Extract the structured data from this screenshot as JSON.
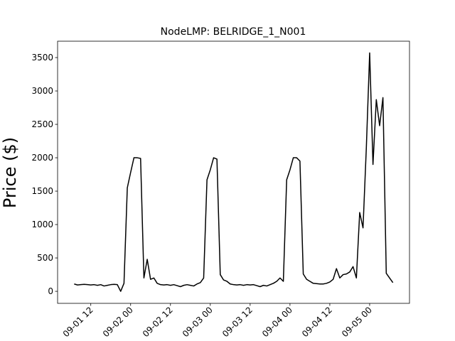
{
  "chart_data": {
    "type": "line",
    "title": "NodeLMP: BELRIDGE_1_N001",
    "y_label": "Price ($)",
    "color": "#000000",
    "x": [
      "09-01 07",
      "09-01 08",
      "09-01 09",
      "09-01 10",
      "09-01 11",
      "09-01 12",
      "09-01 13",
      "09-01 14",
      "09-01 15",
      "09-01 16",
      "09-01 17",
      "09-01 18",
      "09-01 19",
      "09-01 20",
      "09-01 21",
      "09-01 22",
      "09-01 23",
      "09-02 00",
      "09-02 01",
      "09-02 02",
      "09-02 03",
      "09-02 04",
      "09-02 05",
      "09-02 06",
      "09-02 07",
      "09-02 08",
      "09-02 09",
      "09-02 10",
      "09-02 11",
      "09-02 12",
      "09-02 13",
      "09-02 14",
      "09-02 15",
      "09-02 16",
      "09-02 17",
      "09-02 18",
      "09-02 19",
      "09-02 20",
      "09-02 21",
      "09-02 22",
      "09-02 23",
      "09-03 00",
      "09-03 01",
      "09-03 02",
      "09-03 03",
      "09-03 04",
      "09-03 05",
      "09-03 06",
      "09-03 07",
      "09-03 08",
      "09-03 09",
      "09-03 10",
      "09-03 11",
      "09-03 12",
      "09-03 13",
      "09-03 14",
      "09-03 15",
      "09-03 16",
      "09-03 17",
      "09-03 18",
      "09-03 19",
      "09-03 20",
      "09-03 21",
      "09-03 22",
      "09-03 23",
      "09-04 00",
      "09-04 01",
      "09-04 02",
      "09-04 03",
      "09-04 04",
      "09-04 05",
      "09-04 06",
      "09-04 07",
      "09-04 08",
      "09-04 09",
      "09-04 10",
      "09-04 11",
      "09-04 12",
      "09-04 13",
      "09-04 14",
      "09-04 15",
      "09-04 16",
      "09-04 17",
      "09-04 18",
      "09-04 19",
      "09-04 20",
      "09-04 21",
      "09-04 22",
      "09-04 23",
      "09-05 00",
      "09-05 01",
      "09-05 02",
      "09-05 03",
      "09-05 04",
      "09-05 05",
      "09-05 06",
      "09-05 07"
    ],
    "values": [
      110,
      95,
      100,
      105,
      100,
      95,
      100,
      90,
      100,
      80,
      90,
      100,
      105,
      100,
      0,
      120,
      1550,
      1780,
      2000,
      2000,
      1990,
      200,
      480,
      180,
      200,
      120,
      100,
      95,
      100,
      90,
      100,
      85,
      70,
      90,
      100,
      90,
      80,
      110,
      130,
      200,
      1670,
      1820,
      2000,
      1980,
      250,
      170,
      150,
      110,
      100,
      95,
      100,
      90,
      100,
      95,
      100,
      85,
      70,
      90,
      80,
      100,
      120,
      150,
      200,
      150,
      1670,
      1820,
      2000,
      2000,
      1950,
      260,
      180,
      150,
      120,
      115,
      110,
      110,
      120,
      140,
      180,
      340,
      200,
      250,
      260,
      290,
      370,
      200,
      1180,
      950,
      2150,
      3570,
      1900,
      2870,
      2480,
      2900,
      270,
      200,
      130
    ],
    "xlim": [
      "09-01 02",
      "09-05 12"
    ],
    "xticks": [
      "09-01 12",
      "09-02 00",
      "09-02 12",
      "09-03 00",
      "09-03 12",
      "09-04 00",
      "09-04 12",
      "09-05 00"
    ],
    "ylim": [
      -180,
      3745
    ],
    "yticks": [
      0,
      500,
      1000,
      1500,
      2000,
      2500,
      3000,
      3500
    ]
  }
}
